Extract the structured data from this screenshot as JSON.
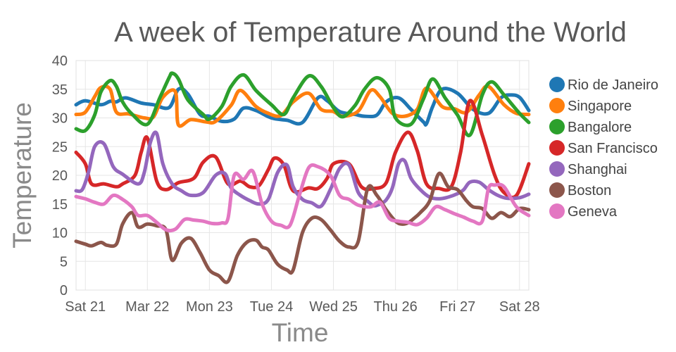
{
  "chart_data": {
    "type": "line",
    "title": "A week of Temperature Around the World",
    "xlabel": "Time",
    "ylabel": "Temperature",
    "ylim": [
      0,
      40
    ],
    "yticks": [
      0,
      5,
      10,
      15,
      20,
      25,
      30,
      35,
      40
    ],
    "xlim": [
      -0.15,
      7.15
    ],
    "xticks": [
      {
        "x": 0,
        "label": "Sat 21"
      },
      {
        "x": 1,
        "label": "Mar 22"
      },
      {
        "x": 2,
        "label": "Mon 23"
      },
      {
        "x": 3,
        "label": "Tue 24"
      },
      {
        "x": 4,
        "label": "Wed 25"
      },
      {
        "x": 5,
        "label": "Thu 26"
      },
      {
        "x": 6,
        "label": "Fri 27"
      },
      {
        "x": 7,
        "label": "Sat 28"
      }
    ],
    "grid": true,
    "legend_position": "right",
    "series": [
      {
        "name": "Rio de Janeiro",
        "color": "#1f77b4",
        "x": [
          -0.15,
          0.0,
          0.25,
          0.4,
          0.5,
          0.65,
          0.9,
          1.1,
          1.35,
          1.5,
          1.65,
          1.85,
          2.0,
          2.2,
          2.4,
          2.55,
          2.75,
          3.0,
          3.25,
          3.5,
          3.75,
          3.9,
          4.1,
          4.35,
          4.5,
          4.7,
          4.85,
          5.05,
          5.25,
          5.45,
          5.5,
          5.6,
          5.75,
          6.0,
          6.25,
          6.5,
          6.7,
          6.85,
          7.0,
          7.15
        ],
        "y": [
          32.3,
          33.0,
          32.3,
          32.9,
          32.8,
          33.5,
          32.6,
          32.3,
          31.8,
          35.0,
          34.2,
          30.6,
          30.3,
          29.4,
          29.8,
          31.7,
          31.3,
          30.0,
          29.6,
          29.2,
          33.5,
          33.0,
          31.1,
          30.6,
          30.3,
          30.5,
          32.8,
          33.5,
          31.5,
          29.3,
          29.0,
          32.0,
          35.0,
          34.3,
          31.5,
          30.8,
          33.5,
          34.0,
          33.6,
          31.3
        ]
      },
      {
        "name": "Singapore",
        "color": "#ff7f0e",
        "x": [
          -0.15,
          0.0,
          0.15,
          0.25,
          0.4,
          0.5,
          0.7,
          0.95,
          1.1,
          1.25,
          1.45,
          1.5,
          1.7,
          1.95,
          2.1,
          2.35,
          2.5,
          2.75,
          2.95,
          3.15,
          3.35,
          3.6,
          3.8,
          4.0,
          4.15,
          4.4,
          4.6,
          4.75,
          4.95,
          5.15,
          5.35,
          5.5,
          5.75,
          5.95,
          6.15,
          6.35,
          6.5,
          6.75,
          6.95,
          7.15
        ],
        "y": [
          30.6,
          31.0,
          33.7,
          35.3,
          35.0,
          31.0,
          30.7,
          30.0,
          30.2,
          33.6,
          34.6,
          28.8,
          29.7,
          29.3,
          29.4,
          32.2,
          34.8,
          32.0,
          30.8,
          30.4,
          32.8,
          34.3,
          31.5,
          31.1,
          30.3,
          31.2,
          34.8,
          33.7,
          30.8,
          30.3,
          31.5,
          35.2,
          32.0,
          31.6,
          31.0,
          34.0,
          35.5,
          32.3,
          30.8,
          30.6
        ]
      },
      {
        "name": "Bangalore",
        "color": "#2ca02c",
        "x": [
          -0.15,
          0.0,
          0.15,
          0.25,
          0.4,
          0.5,
          0.6,
          0.75,
          1.0,
          1.2,
          1.35,
          1.4,
          1.5,
          1.65,
          1.9,
          2.0,
          2.2,
          2.35,
          2.55,
          2.75,
          3.0,
          3.2,
          3.35,
          3.6,
          3.8,
          4.0,
          4.15,
          4.35,
          4.5,
          4.7,
          4.9,
          5.0,
          5.25,
          5.45,
          5.6,
          5.8,
          6.0,
          6.2,
          6.4,
          6.55,
          6.75,
          7.0,
          7.15
        ],
        "y": [
          28.1,
          27.8,
          30.5,
          34.5,
          36.5,
          35.5,
          32.8,
          30.7,
          28.9,
          33.5,
          37.0,
          37.8,
          36.8,
          33.2,
          30.6,
          29.8,
          32.0,
          35.5,
          37.5,
          34.8,
          32.3,
          30.6,
          33.5,
          37.3,
          35.5,
          31.8,
          30.2,
          32.2,
          35.0,
          37.0,
          35.0,
          30.0,
          28.9,
          33.3,
          36.8,
          33.5,
          30.5,
          27.0,
          34.0,
          36.3,
          34.0,
          30.8,
          29.2
        ]
      },
      {
        "name": "San Francisco",
        "color": "#d62728",
        "x": [
          -0.15,
          0.0,
          0.1,
          0.3,
          0.5,
          0.6,
          0.8,
          0.9,
          1.0,
          1.15,
          1.3,
          1.5,
          1.75,
          1.9,
          2.1,
          2.3,
          2.5,
          2.65,
          2.8,
          2.95,
          3.05,
          3.2,
          3.35,
          3.6,
          3.75,
          3.9,
          4.0,
          4.25,
          4.45,
          4.65,
          4.85,
          5.0,
          5.2,
          5.35,
          5.5,
          5.7,
          5.9,
          6.05,
          6.2,
          6.4,
          6.6,
          6.75,
          6.95,
          7.15
        ],
        "y": [
          24.0,
          22.0,
          18.5,
          18.5,
          18.0,
          18.5,
          20.0,
          24.0,
          26.5,
          19.0,
          17.5,
          18.7,
          19.5,
          22.3,
          23.2,
          18.5,
          19.0,
          18.0,
          18.2,
          21.0,
          23.0,
          21.8,
          17.3,
          17.8,
          17.7,
          19.5,
          22.0,
          22.0,
          18.0,
          17.7,
          18.7,
          24.0,
          27.5,
          24.3,
          18.5,
          17.7,
          18.0,
          24.0,
          33.0,
          27.0,
          20.0,
          17.0,
          16.5,
          22.0
        ]
      },
      {
        "name": "Shanghai",
        "color": "#9467bd",
        "x": [
          -0.15,
          -0.05,
          0.05,
          0.15,
          0.3,
          0.45,
          0.6,
          0.85,
          0.95,
          1.05,
          1.15,
          1.25,
          1.4,
          1.55,
          1.7,
          1.9,
          2.1,
          2.25,
          2.35,
          2.5,
          2.65,
          2.8,
          2.95,
          3.1,
          3.25,
          3.35,
          3.5,
          3.65,
          3.8,
          3.95,
          4.1,
          4.25,
          4.4,
          4.55,
          4.65,
          4.75,
          4.85,
          4.95,
          5.05,
          5.15,
          5.25,
          5.4,
          5.55,
          5.7,
          5.85,
          6.0,
          6.1,
          6.2,
          6.35,
          6.5,
          6.65,
          6.8,
          7.0,
          7.15
        ],
        "y": [
          17.3,
          17.5,
          20.5,
          25.0,
          25.5,
          21.5,
          20.2,
          18.5,
          20.5,
          25.8,
          27.3,
          22.0,
          18.5,
          17.3,
          16.5,
          17.0,
          20.0,
          20.3,
          17.8,
          16.5,
          15.6,
          15.0,
          15.8,
          20.5,
          21.8,
          18.0,
          15.8,
          15.2,
          14.6,
          17.5,
          21.2,
          21.8,
          17.0,
          15.5,
          14.7,
          15.0,
          15.7,
          17.8,
          22.0,
          22.5,
          19.5,
          17.5,
          16.2,
          15.9,
          16.2,
          16.8,
          17.5,
          18.8,
          18.8,
          17.5,
          16.5,
          16.0,
          16.1,
          16.7
        ]
      },
      {
        "name": "Boston",
        "color": "#8c564b",
        "x": [
          -0.15,
          0.0,
          0.1,
          0.25,
          0.35,
          0.5,
          0.6,
          0.75,
          0.85,
          1.0,
          1.15,
          1.3,
          1.4,
          1.55,
          1.7,
          1.85,
          2.0,
          2.15,
          2.3,
          2.45,
          2.6,
          2.75,
          2.85,
          2.95,
          3.1,
          3.25,
          3.35,
          3.5,
          3.65,
          3.8,
          3.95,
          4.1,
          4.25,
          4.4,
          4.55,
          4.7,
          4.85,
          5.0,
          5.1,
          5.2,
          5.3,
          5.4,
          5.55,
          5.7,
          5.85,
          6.0,
          6.15,
          6.25,
          6.4,
          6.55,
          6.7,
          6.85,
          7.0,
          7.15
        ],
        "y": [
          8.5,
          8.0,
          7.7,
          8.3,
          7.8,
          8.0,
          11.5,
          13.5,
          11.0,
          11.5,
          11.2,
          10.5,
          5.2,
          8.2,
          9.0,
          6.5,
          3.5,
          2.5,
          1.5,
          6.0,
          8.3,
          8.7,
          7.5,
          7.0,
          4.5,
          3.5,
          3.5,
          10.0,
          12.5,
          12.3,
          10.5,
          8.5,
          7.5,
          8.5,
          17.7,
          16.5,
          14.0,
          12.0,
          11.5,
          11.7,
          12.5,
          13.5,
          15.5,
          20.3,
          18.0,
          17.5,
          15.5,
          14.5,
          14.2,
          12.5,
          13.5,
          12.8,
          14.2,
          14.0
        ]
      },
      {
        "name": "Geneva",
        "color": "#e377c2",
        "x": [
          -0.15,
          0.0,
          0.15,
          0.3,
          0.45,
          0.6,
          0.75,
          0.85,
          1.0,
          1.15,
          1.3,
          1.45,
          1.6,
          1.75,
          1.9,
          2.05,
          2.2,
          2.3,
          2.4,
          2.55,
          2.7,
          2.85,
          3.0,
          3.15,
          3.3,
          3.45,
          3.6,
          3.75,
          3.95,
          4.1,
          4.25,
          4.4,
          4.6,
          4.75,
          4.9,
          5.05,
          5.2,
          5.35,
          5.5,
          5.65,
          5.8,
          5.95,
          6.1,
          6.25,
          6.4,
          6.5,
          6.6,
          6.75,
          6.95,
          7.15
        ],
        "y": [
          16.3,
          15.9,
          15.3,
          15.0,
          16.5,
          15.8,
          14.5,
          13.0,
          13.0,
          11.8,
          10.5,
          10.6,
          12.3,
          12.2,
          12.0,
          11.6,
          11.7,
          12.5,
          20.0,
          19.3,
          20.7,
          15.0,
          12.0,
          11.3,
          11.3,
          16.5,
          21.3,
          21.5,
          20.0,
          16.5,
          15.8,
          14.8,
          14.5,
          15.3,
          12.5,
          12.0,
          11.8,
          11.4,
          12.5,
          14.5,
          14.0,
          13.3,
          12.7,
          12.0,
          12.0,
          17.7,
          18.3,
          18.0,
          14.5,
          13.0
        ]
      }
    ]
  }
}
